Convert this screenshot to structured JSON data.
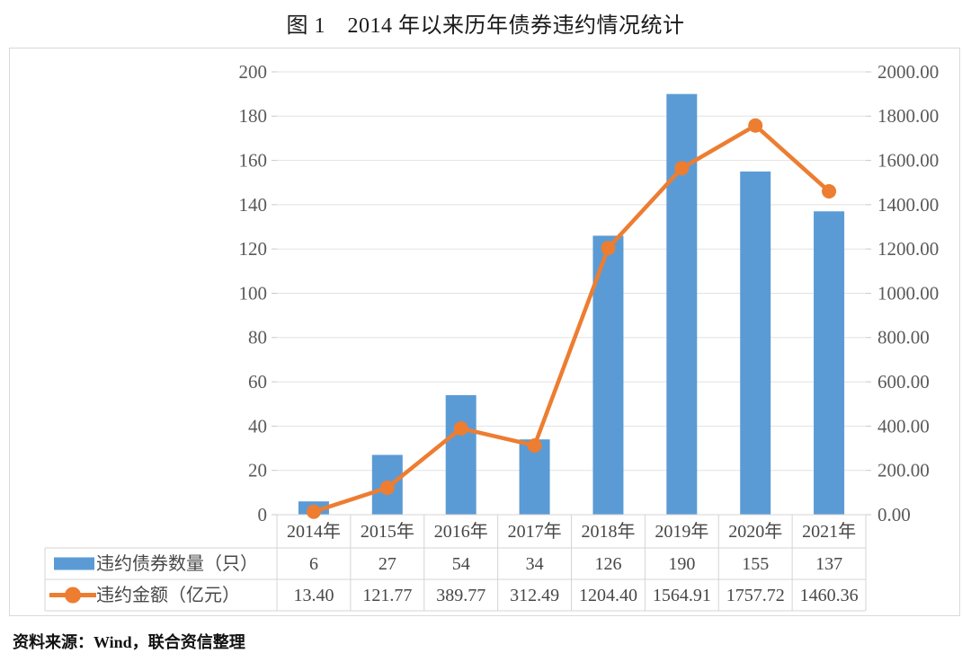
{
  "title": "图 1　2014 年以来历年债券违约情况统计",
  "source_note": "资料来源：Wind，联合资信整理",
  "colors": {
    "bar": "#5B9BD5",
    "line": "#ED7D31",
    "grid": "#E2E2E2",
    "tick": "#C9C9C9",
    "table_border": "#D4D4D4",
    "axis_text": "#595959",
    "table_text": "#474747",
    "frame_border": "#D9D9D9"
  },
  "chart_data": {
    "type": "bar+line",
    "title": "图 1　2014 年以来历年债券违约情况统计",
    "categories": [
      "2014年",
      "2015年",
      "2016年",
      "2017年",
      "2018年",
      "2019年",
      "2020年",
      "2021年"
    ],
    "series": [
      {
        "name": "违约债券数量（只）",
        "type": "bar",
        "axis": "left",
        "color": "#5B9BD5",
        "values": [
          6,
          27,
          54,
          34,
          126,
          190,
          155,
          137
        ],
        "display": [
          "6",
          "27",
          "54",
          "34",
          "126",
          "190",
          "155",
          "137"
        ]
      },
      {
        "name": "违约金额（亿元）",
        "type": "line",
        "axis": "right",
        "color": "#ED7D31",
        "values": [
          13.4,
          121.77,
          389.77,
          312.49,
          1204.4,
          1564.91,
          1757.72,
          1460.36
        ],
        "display": [
          "13.40",
          "121.77",
          "389.77",
          "312.49",
          "1204.40",
          "1564.91",
          "1757.72",
          "1460.36"
        ]
      }
    ],
    "left_axis": {
      "min": 0,
      "max": 200,
      "step": 20,
      "tick_labels": [
        "0",
        "20",
        "40",
        "60",
        "80",
        "100",
        "120",
        "140",
        "160",
        "180",
        "200"
      ]
    },
    "right_axis": {
      "min": 0,
      "max": 2000,
      "step": 200,
      "tick_labels": [
        "0.00",
        "200.00",
        "400.00",
        "600.00",
        "800.00",
        "1000.00",
        "1200.00",
        "1400.00",
        "1600.00",
        "1800.00",
        "2000.00"
      ]
    },
    "grid": true,
    "legend_position": "table-left",
    "data_table": true
  }
}
